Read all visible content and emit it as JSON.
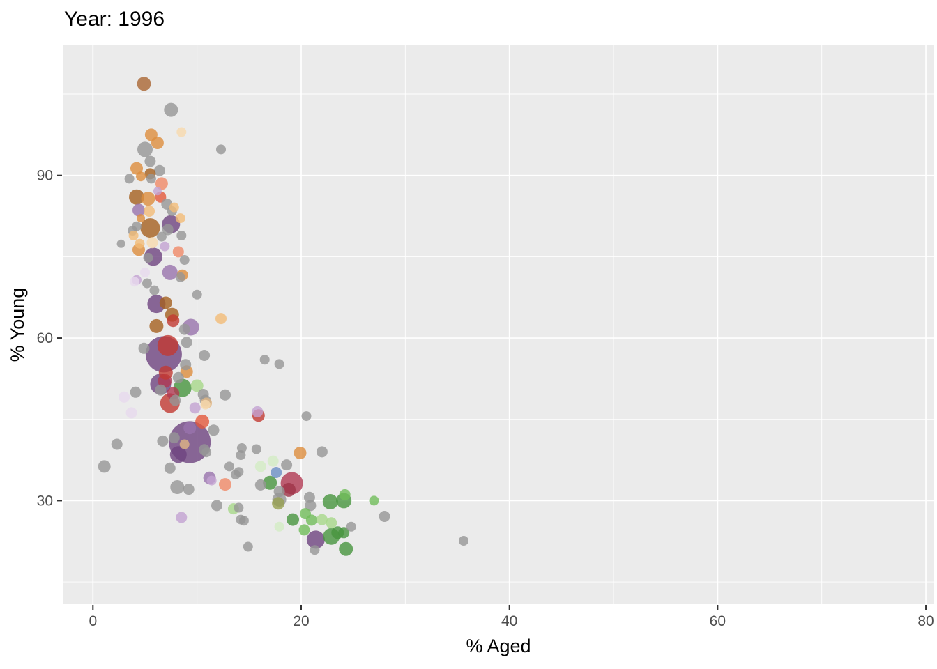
{
  "chart_data": {
    "type": "scatter",
    "title": "Year: 1996",
    "xlabel": "% Aged",
    "ylabel": "% Young",
    "legend": "none",
    "grid": "major and minor white gridlines on gray panel",
    "x_axis": {
      "ticks": [
        0,
        20,
        40,
        60,
        80
      ],
      "minor_ticks": [
        10,
        30,
        50,
        70
      ],
      "range": [
        -2.9,
        80.8
      ]
    },
    "y_axis": {
      "ticks": [
        30,
        60,
        90
      ],
      "minor_ticks": [
        15,
        45,
        75,
        105
      ],
      "range": [
        10.9,
        114.0
      ]
    },
    "style": {
      "panel_bg": "#ebebeb",
      "grid_color": "#ffffff",
      "tick_label_color": "#4d4d4d",
      "axis_title_color": "#000000",
      "title_color": "#000000",
      "tick_mark_color": "#333333",
      "point_alpha": 0.8
    },
    "palette": {
      "gy": "#969696",
      "br": "#aa6633",
      "do": "#a5601f",
      "or": "#dd8d3d",
      "lo": "#f2bb77",
      "pe": "#f8d9ae",
      "pu": "#6e4480",
      "mp": "#9873ac",
      "lp": "#c3a3d2",
      "th": "#e7d9ee",
      "rd": "#c23a32",
      "cr": "#b03a52",
      "dr": "#9e3448",
      "sa": "#f08a68",
      "to": "#e4593c",
      "gn": "#47953f",
      "mg": "#71bd5a",
      "lg": "#a8d889",
      "pg": "#d3ecc4",
      "bl": "#6b90c5",
      "tn": "#dfb584",
      "ol": "#97a050"
    },
    "points_format": [
      "pct_aged",
      "pct_young",
      "radius_px",
      "color_key"
    ],
    "points": [
      [
        4.9,
        106.9,
        10,
        "br"
      ],
      [
        7.5,
        102.1,
        10,
        "gy"
      ],
      [
        8.5,
        98.0,
        7,
        "pe"
      ],
      [
        5.6,
        97.5,
        9,
        "or"
      ],
      [
        6.2,
        96.0,
        9,
        "or"
      ],
      [
        12.3,
        94.8,
        7,
        "gy"
      ],
      [
        5.0,
        94.8,
        11,
        "gy"
      ],
      [
        5.5,
        92.6,
        8,
        "gy"
      ],
      [
        4.2,
        91.3,
        9,
        "or"
      ],
      [
        6.4,
        90.9,
        8,
        "gy"
      ],
      [
        5.5,
        90.3,
        8,
        "do"
      ],
      [
        3.5,
        89.4,
        7,
        "gy"
      ],
      [
        4.6,
        89.8,
        7,
        "or"
      ],
      [
        5.6,
        89.4,
        7,
        "gy"
      ],
      [
        6.6,
        88.5,
        9,
        "sa"
      ],
      [
        4.2,
        86.0,
        11,
        "do"
      ],
      [
        5.3,
        85.7,
        10,
        "or"
      ],
      [
        6.2,
        87.1,
        6,
        "lp"
      ],
      [
        6.5,
        86.0,
        8,
        "to"
      ],
      [
        7.1,
        84.7,
        8,
        "gy"
      ],
      [
        4.4,
        83.6,
        9,
        "mp"
      ],
      [
        5.4,
        83.4,
        8,
        "lo"
      ],
      [
        7.6,
        83.4,
        7,
        "gy"
      ],
      [
        7.8,
        84.1,
        7,
        "lo"
      ],
      [
        4.6,
        82.1,
        6,
        "or"
      ],
      [
        7.5,
        81.0,
        13,
        "pu"
      ],
      [
        5.5,
        80.3,
        14,
        "do"
      ],
      [
        7.2,
        80.0,
        8,
        "gy"
      ],
      [
        8.4,
        82.1,
        7,
        "lo"
      ],
      [
        4.2,
        80.6,
        7,
        "gy"
      ],
      [
        3.8,
        79.8,
        7,
        "gy"
      ],
      [
        3.9,
        78.9,
        7,
        "lo"
      ],
      [
        6.6,
        78.7,
        7,
        "gy"
      ],
      [
        8.5,
        78.9,
        7,
        "gy"
      ],
      [
        2.7,
        77.4,
        6,
        "gy"
      ],
      [
        4.5,
        77.4,
        7,
        "lo"
      ],
      [
        4.4,
        76.3,
        9,
        "or"
      ],
      [
        5.7,
        77.6,
        8,
        "pe"
      ],
      [
        6.9,
        76.9,
        7,
        "lp"
      ],
      [
        5.8,
        75.0,
        13,
        "pu"
      ],
      [
        8.2,
        75.9,
        8,
        "sa"
      ],
      [
        8.8,
        74.4,
        7,
        "gy"
      ],
      [
        5.3,
        74.8,
        7,
        "gy"
      ],
      [
        5.0,
        72.1,
        7,
        "th"
      ],
      [
        7.4,
        72.1,
        11,
        "mp"
      ],
      [
        8.6,
        71.6,
        8,
        "or"
      ],
      [
        8.4,
        71.2,
        7,
        "gy"
      ],
      [
        4.2,
        70.7,
        7,
        "lp"
      ],
      [
        4.0,
        70.4,
        7,
        "th"
      ],
      [
        5.2,
        70.1,
        7,
        "gy"
      ],
      [
        5.9,
        68.8,
        7,
        "gy"
      ],
      [
        10.0,
        68.0,
        7,
        "gy"
      ],
      [
        6.1,
        66.3,
        13,
        "pu"
      ],
      [
        7.0,
        66.5,
        9,
        "do"
      ],
      [
        7.6,
        64.3,
        10,
        "do"
      ],
      [
        7.7,
        63.2,
        9,
        "rd"
      ],
      [
        9.4,
        62.0,
        12,
        "mp"
      ],
      [
        12.3,
        63.6,
        8,
        "lo"
      ],
      [
        6.1,
        62.2,
        10,
        "do"
      ],
      [
        8.8,
        61.6,
        8,
        "gy"
      ],
      [
        4.9,
        58.1,
        8,
        "gy"
      ],
      [
        6.8,
        57.0,
        26,
        "pu"
      ],
      [
        7.2,
        58.6,
        15,
        "rd"
      ],
      [
        9.0,
        59.2,
        8,
        "gy"
      ],
      [
        10.7,
        56.8,
        8,
        "gy"
      ],
      [
        8.9,
        55.1,
        8,
        "gy"
      ],
      [
        9.0,
        53.8,
        9,
        "or"
      ],
      [
        8.2,
        52.7,
        8,
        "gy"
      ],
      [
        6.9,
        52.1,
        10,
        "cr"
      ],
      [
        6.5,
        51.5,
        15,
        "pu"
      ],
      [
        7.0,
        53.6,
        10,
        "rd"
      ],
      [
        8.6,
        50.8,
        13,
        "gn"
      ],
      [
        10.0,
        51.2,
        9,
        "lg"
      ],
      [
        4.1,
        50.0,
        8,
        "gy"
      ],
      [
        3.0,
        49.1,
        8,
        "th"
      ],
      [
        6.5,
        50.4,
        8,
        "gy"
      ],
      [
        7.7,
        49.8,
        9,
        "cr"
      ],
      [
        7.9,
        48.5,
        8,
        "gy"
      ],
      [
        10.6,
        49.6,
        8,
        "gy"
      ],
      [
        10.8,
        48.5,
        8,
        "gy"
      ],
      [
        12.7,
        49.5,
        8,
        "gy"
      ],
      [
        7.4,
        48.0,
        14,
        "rd"
      ],
      [
        10.9,
        48.0,
        8,
        "tn"
      ],
      [
        9.8,
        47.1,
        8,
        "lp"
      ],
      [
        10.8,
        47.7,
        7,
        "pe"
      ],
      [
        3.7,
        46.2,
        8,
        "th"
      ],
      [
        10.5,
        44.6,
        10,
        "to"
      ],
      [
        11.6,
        43.0,
        8,
        "gy"
      ],
      [
        16.5,
        56.0,
        7,
        "gy"
      ],
      [
        17.9,
        55.2,
        7,
        "gy"
      ],
      [
        15.8,
        46.4,
        8,
        "lp"
      ],
      [
        15.9,
        45.7,
        9,
        "rd"
      ],
      [
        20.5,
        45.6,
        7,
        "gy"
      ],
      [
        9.3,
        40.8,
        30,
        "pu"
      ],
      [
        9.3,
        43.4,
        9,
        "mp"
      ],
      [
        8.2,
        38.5,
        12,
        "pu"
      ],
      [
        8.8,
        40.4,
        7,
        "tn"
      ],
      [
        7.8,
        41.6,
        8,
        "gy"
      ],
      [
        6.7,
        41.0,
        8,
        "gy"
      ],
      [
        10.7,
        39.4,
        8,
        "gy"
      ],
      [
        10.9,
        38.9,
        7,
        "gy"
      ],
      [
        2.3,
        40.4,
        8,
        "gy"
      ],
      [
        1.1,
        36.3,
        9,
        "gy"
      ],
      [
        7.4,
        36.0,
        8,
        "gy"
      ],
      [
        13.1,
        36.3,
        7,
        "gy"
      ],
      [
        13.7,
        34.8,
        7,
        "gy"
      ],
      [
        11.2,
        34.2,
        9,
        "mp"
      ],
      [
        11.4,
        33.7,
        7,
        "lp"
      ],
      [
        12.7,
        33.0,
        9,
        "sa"
      ],
      [
        8.1,
        32.5,
        10,
        "gy"
      ],
      [
        9.2,
        32.1,
        8,
        "gy"
      ],
      [
        11.9,
        29.1,
        8,
        "gy"
      ],
      [
        13.5,
        28.5,
        8,
        "lg"
      ],
      [
        8.5,
        26.9,
        8,
        "lp"
      ],
      [
        14.9,
        21.5,
        7,
        "gy"
      ],
      [
        14.3,
        39.7,
        7,
        "gy"
      ],
      [
        14.2,
        38.4,
        7,
        "gy"
      ],
      [
        15.7,
        39.5,
        7,
        "gy"
      ],
      [
        14.0,
        35.3,
        7,
        "gy"
      ],
      [
        19.9,
        38.8,
        9,
        "or"
      ],
      [
        22.0,
        39.0,
        8,
        "gy"
      ],
      [
        18.6,
        36.6,
        8,
        "gy"
      ],
      [
        16.1,
        36.3,
        8,
        "pg"
      ],
      [
        17.3,
        37.3,
        8,
        "pg"
      ],
      [
        17.6,
        35.2,
        8,
        "bl"
      ],
      [
        17.0,
        33.3,
        10,
        "gn"
      ],
      [
        16.1,
        32.9,
        8,
        "gy"
      ],
      [
        19.1,
        33.2,
        16,
        "cr"
      ],
      [
        18.8,
        32.0,
        10,
        "dr"
      ],
      [
        17.9,
        31.7,
        8,
        "gy"
      ],
      [
        17.9,
        30.2,
        10,
        "gy"
      ],
      [
        17.8,
        29.5,
        9,
        "ol"
      ],
      [
        20.8,
        30.6,
        8,
        "gy"
      ],
      [
        20.9,
        29.1,
        8,
        "gy"
      ],
      [
        22.8,
        29.8,
        11,
        "gn"
      ],
      [
        24.1,
        30.0,
        11,
        "gn"
      ],
      [
        24.2,
        31.1,
        8,
        "mg"
      ],
      [
        27.0,
        30.0,
        7,
        "mg"
      ],
      [
        14.0,
        28.7,
        7,
        "gy"
      ],
      [
        14.2,
        26.5,
        7,
        "gy"
      ],
      [
        14.5,
        26.3,
        7,
        "gy"
      ],
      [
        19.2,
        26.5,
        9,
        "gn"
      ],
      [
        20.4,
        27.6,
        8,
        "mg"
      ],
      [
        21.0,
        26.4,
        8,
        "mg"
      ],
      [
        22.0,
        26.5,
        8,
        "lg"
      ],
      [
        22.9,
        25.9,
        8,
        "lg"
      ],
      [
        17.9,
        25.2,
        7,
        "pg"
      ],
      [
        20.3,
        24.6,
        8,
        "mg"
      ],
      [
        24.8,
        25.2,
        7,
        "gy"
      ],
      [
        24.1,
        24.1,
        8,
        "gn"
      ],
      [
        21.4,
        22.8,
        13,
        "pu"
      ],
      [
        22.9,
        23.4,
        12,
        "gn"
      ],
      [
        23.5,
        24.1,
        9,
        "gn"
      ],
      [
        24.3,
        21.1,
        10,
        "gn"
      ],
      [
        21.3,
        20.9,
        7,
        "gy"
      ],
      [
        28.0,
        27.1,
        8,
        "gy"
      ],
      [
        35.6,
        22.6,
        7,
        "gy"
      ]
    ]
  }
}
